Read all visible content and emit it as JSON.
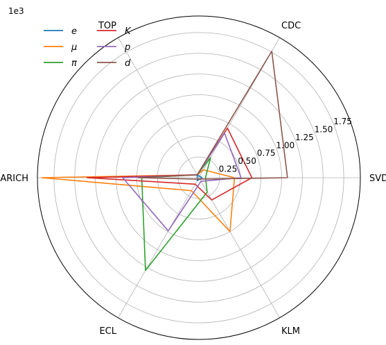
{
  "chart_data": {
    "type": "radar",
    "scale_label": "1e3",
    "scale_factor": 1000,
    "axes": [
      "SVD",
      "CDC",
      "TOP",
      "ARICH",
      "ECL",
      "KLM"
    ],
    "radial_ticks": [
      "0.25",
      "0.50",
      "0.75",
      "1.00",
      "1.25",
      "1.50",
      "1.75"
    ],
    "radial_tick_values": [
      250,
      500,
      750,
      1000,
      1250,
      1500,
      1750
    ],
    "rmax": 1950,
    "grid": true,
    "legend_position": "top-left",
    "series": [
      {
        "name": "e",
        "color": "#1f77b4",
        "values": [
          40,
          20,
          40,
          20,
          40,
          20
        ]
      },
      {
        "name": "μ",
        "color": "#ff7f0e",
        "values": [
          430,
          110,
          40,
          1900,
          180,
          750
        ]
      },
      {
        "name": "π",
        "color": "#2ca02c",
        "values": [
          80,
          280,
          40,
          690,
          1290,
          200
        ]
      },
      {
        "name": "K",
        "color": "#d62728",
        "values": [
          640,
          690,
          40,
          1350,
          90,
          310
        ]
      },
      {
        "name": "p",
        "color": "#9467bd",
        "values": [
          510,
          620,
          40,
          920,
          740,
          50
        ]
      },
      {
        "name": "d",
        "color": "#8c564b",
        "values": [
          1070,
          1760,
          40,
          730,
          20,
          20
        ]
      }
    ]
  }
}
